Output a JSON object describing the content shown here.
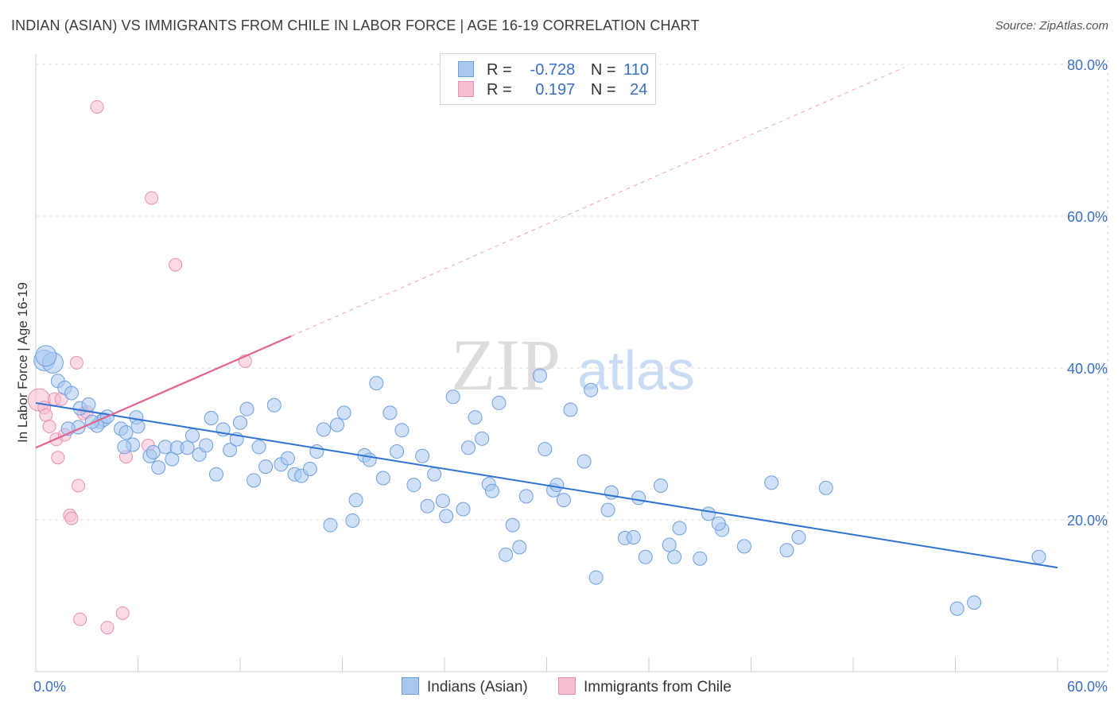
{
  "title": "INDIAN (ASIAN) VS IMMIGRANTS FROM CHILE IN LABOR FORCE | AGE 16-19 CORRELATION CHART",
  "source": "Source: ZipAtlas.com",
  "watermark": {
    "zip": "ZIP",
    "atlas": "atlas"
  },
  "colors": {
    "blue_fill": "#a9c8f0",
    "blue_stroke": "#6d9fe0",
    "blue_line": "#2f72d1",
    "pink_fill": "#f6bcd0",
    "pink_stroke": "#ea8fb0",
    "pink_line": "#e2648e",
    "tick_label": "#3a6fc7",
    "grid": "#dedede"
  },
  "legend": {
    "rows": [
      {
        "r_label": "R =",
        "r_value": "-0.728",
        "n_label": "N =",
        "n_value": "110"
      },
      {
        "r_label": "R =",
        "r_value": "0.197",
        "n_label": "N =",
        "n_value": "24"
      }
    ],
    "series": [
      "Indians (Asian)",
      "Immigrants from Chile"
    ]
  },
  "chart_data": {
    "type": "scatter",
    "title": "INDIAN (ASIAN) VS IMMIGRANTS FROM CHILE IN LABOR FORCE | AGE 16-19 CORRELATION CHART",
    "xlabel": "",
    "ylabel": "In Labor Force | Age 16-19",
    "xlim": [
      0,
      60
    ],
    "ylim": [
      0,
      85
    ],
    "x_tick_labels": [
      "0.0%",
      "60.0%"
    ],
    "y_ticks": [
      20,
      40,
      60,
      80
    ],
    "y_tick_labels": [
      "20.0%",
      "40.0%",
      "60.0%",
      "80.0%"
    ],
    "grid": true,
    "legend_placement": "top-center",
    "series": [
      {
        "name": "Indians (Asian)",
        "r": -0.728,
        "n": 110,
        "trend": {
          "x": [
            0,
            60
          ],
          "y": [
            35.4,
            13.7
          ]
        },
        "points": [
          [
            0.5,
            41.0
          ],
          [
            1.0,
            40.7
          ],
          [
            1.3,
            38.3
          ],
          [
            1.7,
            37.4
          ],
          [
            2.1,
            36.7
          ],
          [
            2.6,
            34.7
          ],
          [
            3.1,
            35.2
          ],
          [
            2.5,
            32.2
          ],
          [
            3.8,
            32.9
          ],
          [
            4.0,
            33.2
          ],
          [
            3.6,
            32.4
          ],
          [
            4.2,
            33.6
          ],
          [
            5.0,
            32.0
          ],
          [
            5.3,
            31.5
          ],
          [
            5.7,
            29.9
          ],
          [
            5.9,
            33.5
          ],
          [
            6.0,
            32.3
          ],
          [
            5.2,
            29.6
          ],
          [
            6.7,
            28.4
          ],
          [
            7.2,
            26.9
          ],
          [
            7.6,
            29.6
          ],
          [
            6.9,
            28.9
          ],
          [
            8.0,
            28.0
          ],
          [
            8.3,
            29.5
          ],
          [
            8.9,
            29.5
          ],
          [
            9.2,
            31.1
          ],
          [
            9.6,
            28.6
          ],
          [
            10.0,
            29.8
          ],
          [
            10.3,
            33.4
          ],
          [
            10.6,
            26.0
          ],
          [
            11.0,
            31.9
          ],
          [
            11.4,
            29.2
          ],
          [
            11.8,
            30.6
          ],
          [
            12.0,
            32.8
          ],
          [
            12.4,
            34.6
          ],
          [
            12.8,
            25.2
          ],
          [
            13.1,
            29.6
          ],
          [
            13.5,
            27.0
          ],
          [
            14.0,
            35.1
          ],
          [
            14.4,
            27.3
          ],
          [
            14.8,
            28.1
          ],
          [
            15.2,
            26.0
          ],
          [
            15.6,
            25.8
          ],
          [
            16.1,
            26.7
          ],
          [
            16.5,
            29.0
          ],
          [
            16.9,
            31.9
          ],
          [
            17.3,
            19.3
          ],
          [
            17.7,
            32.5
          ],
          [
            18.1,
            34.1
          ],
          [
            18.6,
            19.9
          ],
          [
            18.8,
            22.6
          ],
          [
            19.3,
            28.5
          ],
          [
            19.6,
            27.9
          ],
          [
            20.0,
            38.0
          ],
          [
            20.4,
            25.5
          ],
          [
            20.8,
            34.1
          ],
          [
            21.2,
            29.0
          ],
          [
            21.5,
            31.8
          ],
          [
            22.2,
            24.6
          ],
          [
            22.7,
            28.4
          ],
          [
            23.0,
            21.8
          ],
          [
            23.4,
            26.0
          ],
          [
            23.9,
            22.5
          ],
          [
            24.1,
            20.5
          ],
          [
            24.5,
            36.2
          ],
          [
            25.1,
            21.4
          ],
          [
            25.4,
            29.5
          ],
          [
            25.8,
            33.5
          ],
          [
            26.2,
            30.7
          ],
          [
            26.6,
            24.7
          ],
          [
            26.8,
            23.8
          ],
          [
            27.2,
            35.4
          ],
          [
            27.6,
            15.4
          ],
          [
            28.0,
            19.3
          ],
          [
            28.4,
            16.4
          ],
          [
            28.8,
            23.1
          ],
          [
            29.6,
            39.0
          ],
          [
            29.9,
            29.3
          ],
          [
            30.4,
            23.9
          ],
          [
            30.6,
            24.6
          ],
          [
            31.0,
            22.6
          ],
          [
            31.4,
            34.5
          ],
          [
            32.2,
            27.7
          ],
          [
            32.6,
            37.1
          ],
          [
            32.9,
            12.4
          ],
          [
            33.6,
            21.3
          ],
          [
            33.8,
            23.6
          ],
          [
            34.6,
            17.6
          ],
          [
            35.1,
            17.7
          ],
          [
            35.4,
            22.9
          ],
          [
            35.8,
            15.1
          ],
          [
            36.7,
            24.5
          ],
          [
            37.2,
            16.7
          ],
          [
            37.5,
            15.1
          ],
          [
            37.8,
            18.9
          ],
          [
            39.0,
            14.9
          ],
          [
            39.5,
            20.8
          ],
          [
            40.3,
            18.7
          ],
          [
            40.1,
            19.5
          ],
          [
            41.6,
            16.5
          ],
          [
            43.2,
            24.9
          ],
          [
            44.1,
            16.0
          ],
          [
            44.8,
            17.7
          ],
          [
            46.4,
            24.2
          ],
          [
            54.1,
            8.3
          ],
          [
            55.1,
            9.1
          ],
          [
            58.9,
            15.1
          ],
          [
            0.6,
            41.6
          ],
          [
            1.9,
            32.0
          ],
          [
            3.3,
            32.9
          ]
        ]
      },
      {
        "name": "Immigrants from Chile",
        "r": 0.197,
        "n": 24,
        "trend": {
          "x": [
            0,
            15
          ],
          "y": [
            29.5,
            44.2
          ],
          "dashed_to": {
            "x": 51.0,
            "y": 79.6
          }
        },
        "points": [
          [
            0.2,
            35.8
          ],
          [
            0.5,
            34.8
          ],
          [
            0.6,
            33.8
          ],
          [
            0.8,
            32.3
          ],
          [
            1.1,
            35.9
          ],
          [
            1.2,
            30.6
          ],
          [
            1.3,
            28.2
          ],
          [
            1.5,
            35.9
          ],
          [
            1.7,
            31.2
          ],
          [
            2.0,
            20.6
          ],
          [
            2.1,
            20.2
          ],
          [
            2.4,
            40.7
          ],
          [
            2.5,
            24.5
          ],
          [
            2.6,
            6.9
          ],
          [
            2.8,
            34.0
          ],
          [
            3.0,
            34.2
          ],
          [
            3.6,
            74.4
          ],
          [
            4.2,
            5.8
          ],
          [
            5.1,
            7.7
          ],
          [
            5.3,
            28.3
          ],
          [
            6.8,
            62.4
          ],
          [
            6.6,
            29.8
          ],
          [
            8.2,
            53.6
          ],
          [
            12.3,
            40.9
          ]
        ]
      }
    ]
  }
}
